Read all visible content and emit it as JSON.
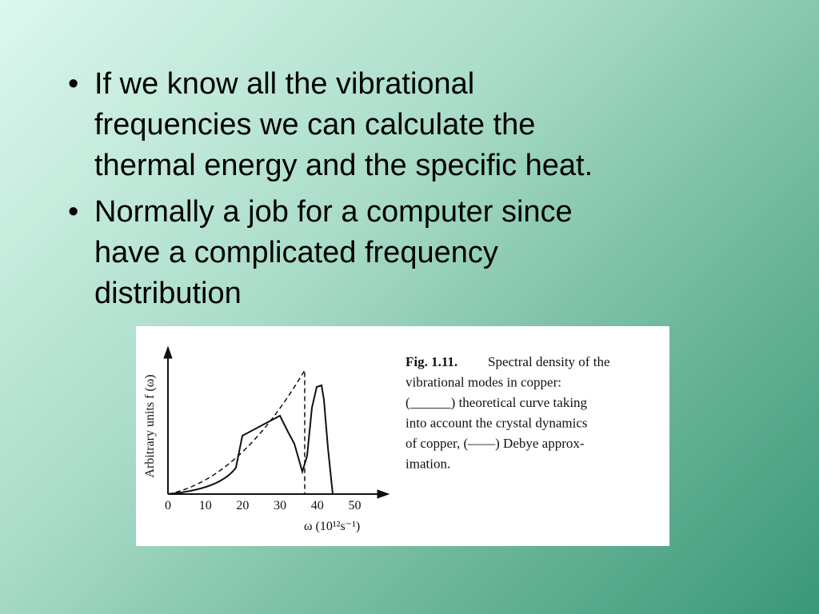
{
  "bullets": [
    {
      "lines": [
        "If we know all the vibrational",
        "frequencies we can calculate the",
        "thermal energy and the specific heat."
      ]
    },
    {
      "lines": [
        "Normally a job for a computer since",
        "have a complicated frequency",
        "distribution"
      ]
    }
  ],
  "figure": {
    "y_label": "Arbitrary units f (ω)",
    "x_ticks": [
      "0",
      "10",
      "20",
      "30",
      "40",
      "50"
    ],
    "x_label": "ω (10¹²s⁻¹)",
    "caption": {
      "label": "Fig. 1.11.",
      "lines": [
        "Spectral density of the",
        "vibrational modes in copper:",
        "(______) theoretical curve taking",
        "into account the crystal dynamics",
        "of copper, (––––) Debye approx-",
        "imation."
      ]
    }
  }
}
